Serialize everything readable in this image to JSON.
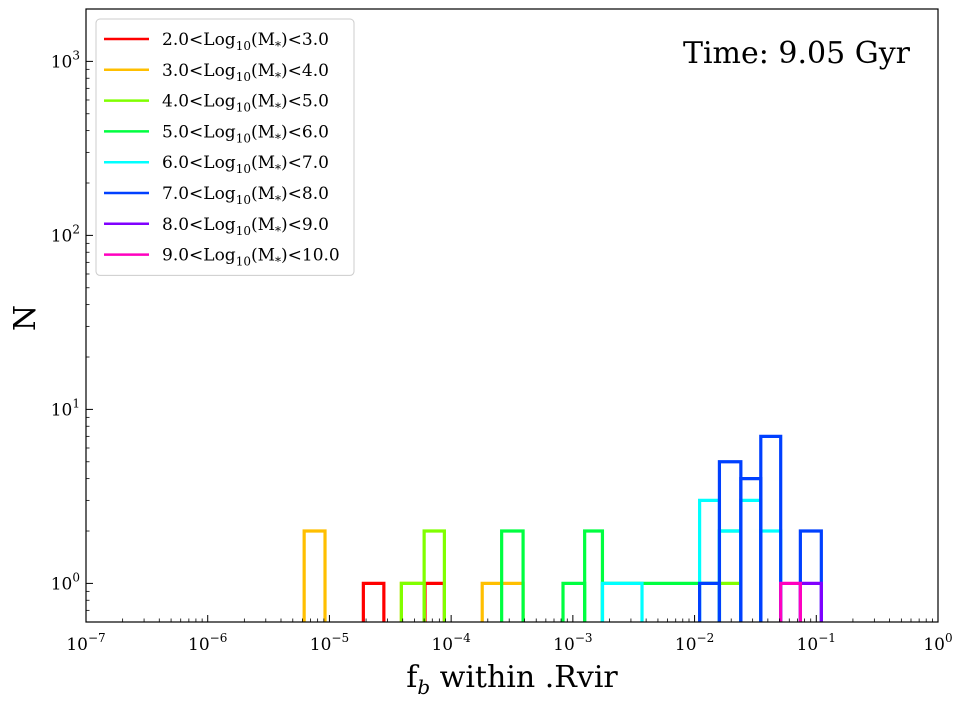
{
  "chart_data": {
    "type": "histogram-step",
    "annotation": "Time: 9.05 Gyr",
    "xlabel_main": "f",
    "xlabel_sub": "b",
    "xlabel_rest": " within .Rvir",
    "ylabel": "N",
    "x_scale": "log",
    "y_scale": "log",
    "xlim": [
      1e-07,
      1
    ],
    "ylim": [
      0.6,
      2000
    ],
    "x_ticks": [
      {
        "value": 1e-07,
        "base": "10",
        "exp": "−7"
      },
      {
        "value": 1e-06,
        "base": "10",
        "exp": "−6"
      },
      {
        "value": 1e-05,
        "base": "10",
        "exp": "−5"
      },
      {
        "value": 0.0001,
        "base": "10",
        "exp": "−4"
      },
      {
        "value": 0.001,
        "base": "10",
        "exp": "−3"
      },
      {
        "value": 0.01,
        "base": "10",
        "exp": "−2"
      },
      {
        "value": 0.1,
        "base": "10",
        "exp": "−1"
      },
      {
        "value": 1,
        "base": "10",
        "exp": "0"
      }
    ],
    "y_ticks": [
      {
        "value": 1,
        "base": "10",
        "exp": "0"
      },
      {
        "value": 10,
        "base": "10",
        "exp": "1"
      },
      {
        "value": 100,
        "base": "10",
        "exp": "2"
      },
      {
        "value": 1000,
        "base": "10",
        "exp": "3"
      }
    ],
    "grid": false,
    "legend_position": "top-left",
    "series": [
      {
        "name_pre": "2.0<Log",
        "name_sub": "10",
        "name_mid": "(M",
        "name_sup": "*",
        "name_post": ")<3.0",
        "color": "#ff0000",
        "bins": [
          {
            "x0": 1.9e-05,
            "x1": 2.8e-05,
            "y": 1
          },
          {
            "x0": 6.1e-05,
            "x1": 8.8e-05,
            "y": 1
          }
        ]
      },
      {
        "name_pre": "3.0<Log",
        "name_sub": "10",
        "name_mid": "(M",
        "name_sup": "*",
        "name_post": ")<4.0",
        "color": "#ffbf00",
        "bins": [
          {
            "x0": 6.2e-06,
            "x1": 9.2e-06,
            "y": 2
          },
          {
            "x0": 3.9e-05,
            "x1": 6e-05,
            "y": 1
          },
          {
            "x0": 0.00018,
            "x1": 0.00039,
            "y": 1
          }
        ]
      },
      {
        "name_pre": "4.0<Log",
        "name_sub": "10",
        "name_mid": "(M",
        "name_sup": "*",
        "name_post": ")<5.0",
        "color": "#80ff00",
        "bins": [
          {
            "x0": 3.9e-05,
            "x1": 6e-05,
            "y": 1
          },
          {
            "x0": 6e-05,
            "x1": 8.8e-05,
            "y": 2
          },
          {
            "x0": 0.016,
            "x1": 0.024,
            "y": 1
          }
        ]
      },
      {
        "name_pre": "5.0<Log",
        "name_sub": "10",
        "name_mid": "(M",
        "name_sup": "*",
        "name_post": ")<6.0",
        "color": "#00ff40",
        "bins": [
          {
            "x0": 0.00026,
            "x1": 0.00039,
            "y": 2
          },
          {
            "x0": 0.00083,
            "x1": 0.00125,
            "y": 1
          },
          {
            "x0": 0.00125,
            "x1": 0.00175,
            "y": 2
          },
          {
            "x0": 0.00175,
            "x1": 0.016,
            "y": 1
          },
          {
            "x0": 0.016,
            "x1": 0.024,
            "y": 2
          }
        ]
      },
      {
        "name_pre": "6.0<Log",
        "name_sub": "10",
        "name_mid": "(M",
        "name_sup": "*",
        "name_post": ")<7.0",
        "color": "#00ffff",
        "bins": [
          {
            "x0": 0.00175,
            "x1": 0.0037,
            "y": 1
          },
          {
            "x0": 0.011,
            "x1": 0.016,
            "y": 3
          },
          {
            "x0": 0.016,
            "x1": 0.024,
            "y": 2
          },
          {
            "x0": 0.024,
            "x1": 0.035,
            "y": 3
          },
          {
            "x0": 0.035,
            "x1": 0.051,
            "y": 2
          }
        ]
      },
      {
        "name_pre": "7.0<Log",
        "name_sub": "10",
        "name_mid": "(M",
        "name_sup": "*",
        "name_post": ")<8.0",
        "color": "#0040ff",
        "bins": [
          {
            "x0": 0.011,
            "x1": 0.016,
            "y": 1
          },
          {
            "x0": 0.016,
            "x1": 0.024,
            "y": 5
          },
          {
            "x0": 0.024,
            "x1": 0.035,
            "y": 4
          },
          {
            "x0": 0.035,
            "x1": 0.051,
            "y": 7
          },
          {
            "x0": 0.074,
            "x1": 0.11,
            "y": 2
          }
        ]
      },
      {
        "name_pre": "8.0<Log",
        "name_sub": "10",
        "name_mid": "(M",
        "name_sup": "*",
        "name_post": ")<9.0",
        "color": "#8000ff",
        "bins": [
          {
            "x0": 0.074,
            "x1": 0.11,
            "y": 1
          }
        ]
      },
      {
        "name_pre": "9.0<Log",
        "name_sub": "10",
        "name_mid": "(M",
        "name_sup": "*",
        "name_post": ")<10.0",
        "color": "#ff00bf",
        "bins": [
          {
            "x0": 0.051,
            "x1": 0.074,
            "y": 1
          }
        ]
      }
    ]
  }
}
